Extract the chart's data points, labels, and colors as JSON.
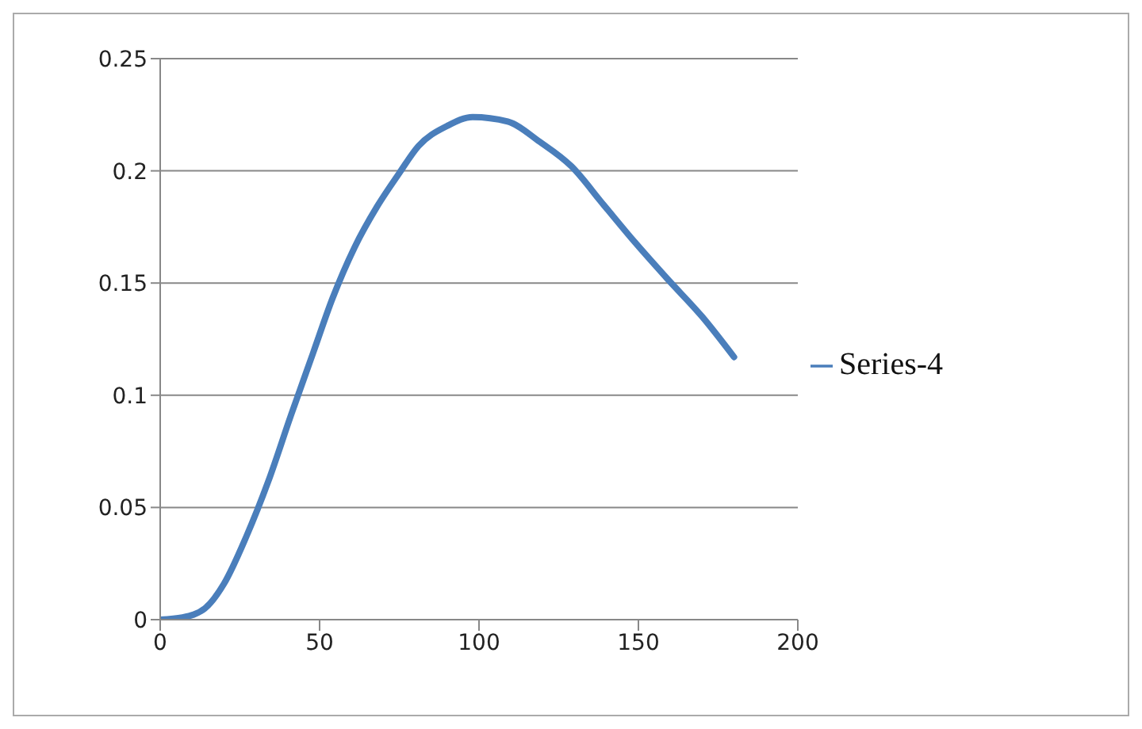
{
  "chart_data": {
    "type": "line",
    "x": [
      0,
      7,
      14,
      20,
      27,
      34,
      41,
      48,
      54,
      61,
      68,
      75,
      81,
      90,
      98,
      109,
      119,
      129,
      139,
      149,
      159,
      170,
      180
    ],
    "series": [
      {
        "name": "Series-4",
        "color": "#4a7ebb",
        "values": [
          0,
          0.001,
          0.005,
          0.016,
          0.037,
          0.062,
          0.091,
          0.119,
          0.143,
          0.166,
          0.184,
          0.199,
          0.211,
          0.22,
          0.224,
          0.222,
          0.213,
          0.202,
          0.185,
          0.168,
          0.152,
          0.135,
          0.117
        ]
      }
    ],
    "xlim": [
      0,
      200
    ],
    "xticks": [
      0,
      50,
      100,
      150,
      200
    ],
    "ylim": [
      0,
      0.25
    ],
    "yticks": [
      0,
      0.05,
      0.1,
      0.15,
      0.2,
      0.25
    ],
    "grid": "y",
    "legend": "right",
    "marker": "none",
    "line_style": "solid"
  }
}
